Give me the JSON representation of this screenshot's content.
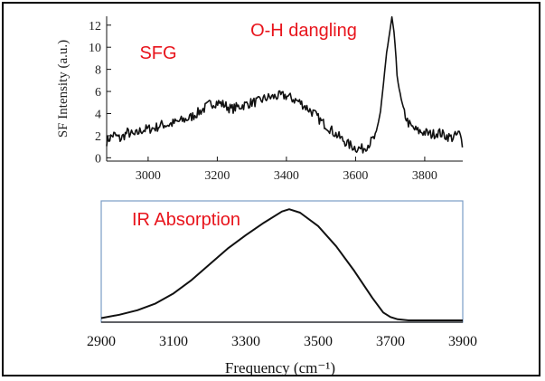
{
  "chart_data": [
    {
      "type": "line",
      "title": "",
      "ylabel": "SF Intensity (a.u.)",
      "xlabel": "",
      "xlim": [
        2880,
        3910
      ],
      "ylim": [
        -0.3,
        12.8
      ],
      "xticks": [
        3000,
        3200,
        3400,
        3600,
        3800
      ],
      "yticks": [
        0,
        2,
        4,
        6,
        8,
        10,
        12
      ],
      "annotations": [
        "SFG",
        "O-H dangling"
      ],
      "series": [
        {
          "name": "",
          "x": [
            2880,
            2900,
            2920,
            2940,
            2960,
            2980,
            3000,
            3020,
            3040,
            3060,
            3080,
            3100,
            3120,
            3140,
            3160,
            3180,
            3200,
            3220,
            3240,
            3260,
            3280,
            3300,
            3320,
            3340,
            3360,
            3380,
            3400,
            3420,
            3440,
            3460,
            3480,
            3500,
            3520,
            3540,
            3560,
            3580,
            3600,
            3620,
            3640,
            3660,
            3670,
            3680,
            3690,
            3700,
            3705,
            3710,
            3715,
            3720,
            3730,
            3740,
            3750,
            3760,
            3780,
            3800,
            3820,
            3840,
            3860,
            3880,
            3900,
            3910
          ],
          "y": [
            1.5,
            2.1,
            1.7,
            2.3,
            2.0,
            2.5,
            2.6,
            2.7,
            3.0,
            3.0,
            3.2,
            3.4,
            3.6,
            4.0,
            4.4,
            4.9,
            5.0,
            4.8,
            4.4,
            4.6,
            4.8,
            5.0,
            5.1,
            5.4,
            5.5,
            5.6,
            5.6,
            5.3,
            5.0,
            4.5,
            4.0,
            3.3,
            2.8,
            2.2,
            1.7,
            1.2,
            0.9,
            0.8,
            1.3,
            2.0,
            3.8,
            6.5,
            9.5,
            11.5,
            12.6,
            11.8,
            9.8,
            7.5,
            5.5,
            4.2,
            3.3,
            2.8,
            2.4,
            2.3,
            2.1,
            2.3,
            2.0,
            1.8,
            2.2,
            1.2
          ]
        }
      ]
    },
    {
      "type": "line",
      "title": "",
      "xlabel": "Frequency (cm⁻¹)",
      "ylabel": "",
      "xlim": [
        2900,
        3900
      ],
      "ylim": [
        0,
        1
      ],
      "xticks": [
        2900,
        3100,
        3300,
        3500,
        3700,
        3900
      ],
      "annotations": [
        "IR Absorption"
      ],
      "series": [
        {
          "name": "",
          "x": [
            2900,
            2950,
            3000,
            3050,
            3100,
            3150,
            3200,
            3250,
            3300,
            3350,
            3400,
            3420,
            3450,
            3500,
            3550,
            3600,
            3650,
            3680,
            3700,
            3720,
            3750,
            3800,
            3850,
            3900
          ],
          "y": [
            0.02,
            0.05,
            0.09,
            0.15,
            0.24,
            0.36,
            0.5,
            0.64,
            0.76,
            0.87,
            0.97,
            0.99,
            0.96,
            0.84,
            0.66,
            0.44,
            0.2,
            0.07,
            0.03,
            0.01,
            0.0,
            0.0,
            0.0,
            0.0
          ]
        }
      ]
    }
  ]
}
